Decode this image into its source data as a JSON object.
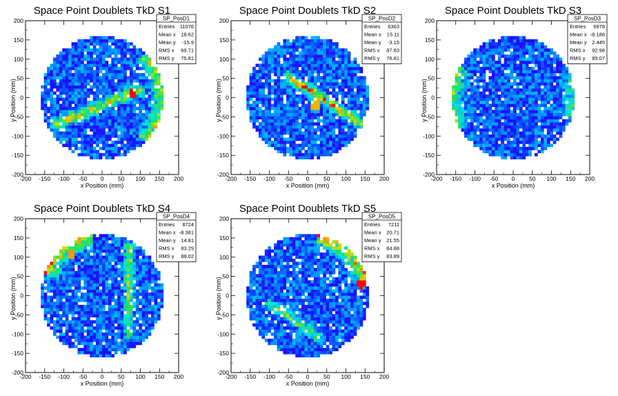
{
  "chart_data": [
    {
      "type": "heatmap",
      "title": "Space Point Doublets TkD S1",
      "xlabel": "x Position (mm)",
      "ylabel": "y Position (mm)",
      "xlim": [
        -200,
        200
      ],
      "ylim": [
        -200,
        200
      ],
      "xticks": [
        -200,
        -150,
        -100,
        -50,
        0,
        50,
        100,
        150,
        200
      ],
      "yticks": [
        -200,
        -150,
        -100,
        -50,
        0,
        50,
        100,
        150,
        200
      ],
      "disk_radius": 160,
      "features": [
        {
          "kind": "band",
          "from": [
            -120,
            -70
          ],
          "to": [
            95,
            20
          ],
          "width": 22,
          "level": 0.55
        },
        {
          "kind": "rim",
          "from_deg": -45,
          "to_deg": 45,
          "level": 0.5
        },
        {
          "kind": "hotspot",
          "at": [
            80,
            10
          ],
          "level": 1.0
        }
      ],
      "stats": {
        "name": "SP_PosD1",
        "rows": [
          {
            "label": "Entries",
            "value": "11076"
          },
          {
            "label": "Mean x",
            "value": "18.62"
          },
          {
            "label": "Mean y",
            "value": "-15.9"
          },
          {
            "label": "RMS x",
            "value": "69.71"
          },
          {
            "label": "RMS y",
            "value": "75.81"
          }
        ]
      }
    },
    {
      "type": "heatmap",
      "title": "Space Point Doublets TkD S2",
      "xlabel": "x Position (mm)",
      "ylabel": "y Position (mm)",
      "xlim": [
        -200,
        200
      ],
      "ylim": [
        -200,
        200
      ],
      "xticks": [
        -200,
        -150,
        -100,
        -50,
        0,
        50,
        100,
        150,
        200
      ],
      "yticks": [
        -200,
        -150,
        -100,
        -50,
        0,
        50,
        100,
        150,
        200
      ],
      "disk_radius": 160,
      "features": [
        {
          "kind": "band",
          "from": [
            -50,
            55
          ],
          "to": [
            150,
            -75
          ],
          "width": 20,
          "level": 0.65
        },
        {
          "kind": "hotspot",
          "at": [
            20,
            -20
          ],
          "level": 0.85
        }
      ],
      "stats": {
        "name": "SP_PosD2",
        "rows": [
          {
            "label": "Entries",
            "value": "6363"
          },
          {
            "label": "Mean x",
            "value": "15.11"
          },
          {
            "label": "Mean y",
            "value": "-3.15"
          },
          {
            "label": "RMS x",
            "value": "87.83"
          },
          {
            "label": "RMS y",
            "value": "76.81"
          }
        ]
      }
    },
    {
      "type": "heatmap",
      "title": "Space Point Doublets TkD S3",
      "xlabel": "x Position (mm)",
      "ylabel": "y Position (mm)",
      "xlim": [
        -200,
        200
      ],
      "ylim": [
        -200,
        200
      ],
      "xticks": [
        -200,
        -150,
        -100,
        -50,
        0,
        50,
        100,
        150,
        200
      ],
      "yticks": [
        -200,
        -150,
        -100,
        -50,
        0,
        50,
        100,
        150,
        200
      ],
      "disk_radius": 160,
      "features": [
        {
          "kind": "rim",
          "from_deg": 150,
          "to_deg": 210,
          "level": 0.4
        },
        {
          "kind": "rim",
          "from_deg": -20,
          "to_deg": 20,
          "level": 0.35
        }
      ],
      "stats": {
        "name": "SP_PosD3",
        "rows": [
          {
            "label": "Entries",
            "value": "6978"
          },
          {
            "label": "Mean x",
            "value": "-8.188"
          },
          {
            "label": "Mean y",
            "value": "2.445"
          },
          {
            "label": "RMS x",
            "value": "92.98"
          },
          {
            "label": "RMS y",
            "value": "85.07"
          }
        ]
      }
    },
    {
      "type": "heatmap",
      "title": "Space Point Doublets TkD S4",
      "xlabel": "x Position (mm)",
      "ylabel": "y Position (mm)",
      "xlim": [
        -200,
        200
      ],
      "ylim": [
        -200,
        200
      ],
      "xticks": [
        -200,
        -150,
        -100,
        -50,
        0,
        50,
        100,
        150,
        200
      ],
      "yticks": [
        -200,
        -150,
        -100,
        -50,
        0,
        50,
        100,
        150,
        200
      ],
      "disk_radius": 160,
      "features": [
        {
          "kind": "band",
          "from": [
            70,
            130
          ],
          "to": [
            70,
            -100
          ],
          "width": 18,
          "level": 0.45
        },
        {
          "kind": "rim",
          "from_deg": 100,
          "to_deg": 160,
          "level": 0.6
        },
        {
          "kind": "hotspot",
          "at": [
            -80,
            110
          ],
          "level": 0.9
        }
      ],
      "stats": {
        "name": "SP_PosD4",
        "rows": [
          {
            "label": "Entries",
            "value": "8724"
          },
          {
            "label": "Mean x",
            "value": "-8.381"
          },
          {
            "label": "Mean y",
            "value": "14.81"
          },
          {
            "label": "RMS x",
            "value": "83.29"
          },
          {
            "label": "RMS y",
            "value": "88.02"
          }
        ]
      }
    },
    {
      "type": "heatmap",
      "title": "Space Point Doublets TkD S5",
      "xlabel": "x Position (mm)",
      "ylabel": "y Position (mm)",
      "xlim": [
        -200,
        200
      ],
      "ylim": [
        -200,
        200
      ],
      "xticks": [
        -200,
        -150,
        -100,
        -50,
        0,
        50,
        100,
        150,
        200
      ],
      "yticks": [
        -200,
        -150,
        -100,
        -50,
        0,
        50,
        100,
        150,
        200
      ],
      "disk_radius": 160,
      "features": [
        {
          "kind": "rim",
          "from_deg": 10,
          "to_deg": 80,
          "level": 0.65
        },
        {
          "kind": "band",
          "from": [
            -100,
            -20
          ],
          "to": [
            30,
            -110
          ],
          "width": 18,
          "level": 0.4
        },
        {
          "kind": "hotspot",
          "at": [
            140,
            30
          ],
          "level": 1.0
        }
      ],
      "stats": {
        "name": "SP_PosD5",
        "rows": [
          {
            "label": "Entries",
            "value": "7211"
          },
          {
            "label": "Mean x",
            "value": "20.71"
          },
          {
            "label": "Mean y",
            "value": "21.55"
          },
          {
            "label": "RMS x",
            "value": "84.88"
          },
          {
            "label": "RMS y",
            "value": "83.89"
          }
        ]
      }
    }
  ]
}
